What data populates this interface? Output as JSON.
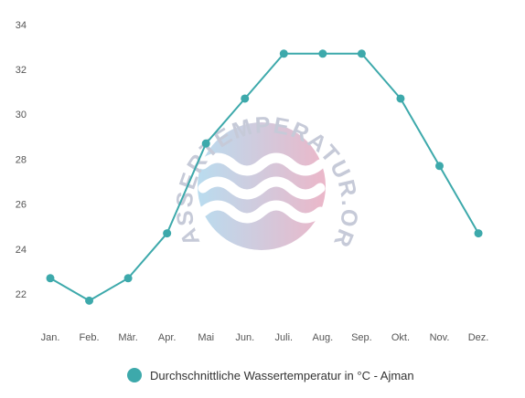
{
  "watermark": {
    "text": "WASSERTEMPERATUR.ORG",
    "gradient_left": "#b9dcef",
    "gradient_right": "#ebb7c9"
  },
  "chart_data": {
    "type": "line",
    "categories": [
      "Jan.",
      "Feb.",
      "Mär.",
      "Apr.",
      "Mai",
      "Jun.",
      "Juli.",
      "Aug.",
      "Sep.",
      "Okt.",
      "Nov.",
      "Dez."
    ],
    "series": [
      {
        "name": "Durchschnittliche Wassertemperatur in °C - Ajman",
        "values": [
          22.7,
          21.7,
          22.7,
          24.7,
          28.7,
          30.7,
          32.7,
          32.7,
          32.7,
          30.7,
          27.7,
          24.7
        ],
        "color": "#3da9ab"
      }
    ],
    "yticks": [
      22,
      24,
      26,
      28,
      30,
      32,
      34
    ],
    "ylim": [
      21,
      34
    ],
    "grid": false,
    "legend_position": "bottom-center"
  }
}
